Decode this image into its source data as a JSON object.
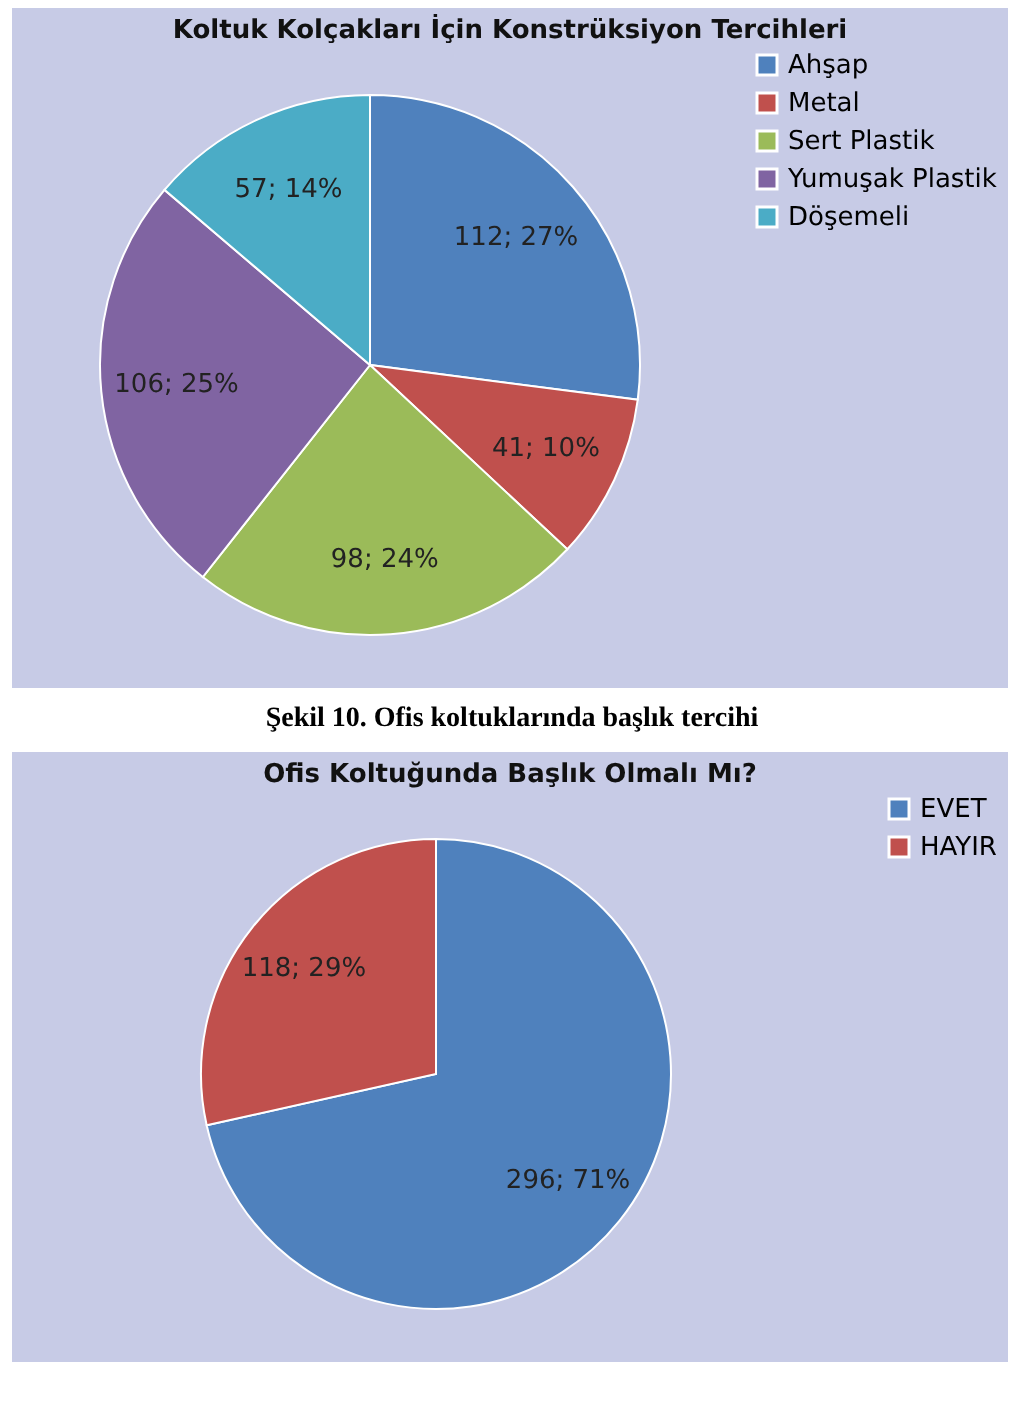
{
  "chart_data": [
    {
      "type": "pie",
      "title": "Koltuk Kolçakları İçin Konstrüksiyon Tercihleri",
      "categories": [
        "Ahşap",
        "Metal",
        "Sert Plastik",
        "Yumuşak Plastik",
        "Döşemeli"
      ],
      "values": [
        112,
        41,
        98,
        106,
        57
      ],
      "colors": [
        "#4f81bd",
        "#c0504d",
        "#9bbb59",
        "#8064a2",
        "#4bacc6"
      ],
      "value_labels": [
        "112; 27%",
        "41; 10%",
        "98; 24%",
        "106; 25%",
        "57; 14%"
      ],
      "legend": "right"
    },
    {
      "type": "pie",
      "title": "Ofis Koltuğunda Başlık Olmalı Mı?",
      "annotations": [
        "Şekil 10. Ofis koltuklarında başlık tercihi"
      ],
      "categories": [
        "EVET",
        "HAYIR"
      ],
      "values": [
        296,
        118
      ],
      "colors": [
        "#4f81bd",
        "#c0504d"
      ],
      "value_labels": [
        "296; 71%",
        "118; 29%"
      ],
      "legend": "right"
    }
  ]
}
